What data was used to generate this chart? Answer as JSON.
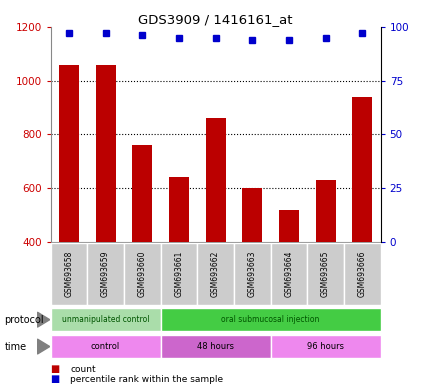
{
  "title": "GDS3909 / 1416161_at",
  "samples": [
    "GSM693658",
    "GSM693659",
    "GSM693660",
    "GSM693661",
    "GSM693662",
    "GSM693663",
    "GSM693664",
    "GSM693665",
    "GSM693666"
  ],
  "counts": [
    1060,
    1060,
    760,
    640,
    860,
    600,
    520,
    630,
    940
  ],
  "percentile_ranks": [
    97,
    97,
    96,
    95,
    95,
    94,
    94,
    95,
    97
  ],
  "ylim_left": [
    400,
    1200
  ],
  "ylim_right": [
    0,
    100
  ],
  "yticks_left": [
    400,
    600,
    800,
    1000,
    1200
  ],
  "yticks_right": [
    0,
    25,
    50,
    75,
    100
  ],
  "bar_color": "#bb0000",
  "dot_color": "#0000cc",
  "protocol_groups": [
    {
      "label": "unmanipulated control",
      "start": 0,
      "end": 3,
      "color": "#aaddaa"
    },
    {
      "label": "oral submucosal injection",
      "start": 3,
      "end": 9,
      "color": "#44cc44"
    }
  ],
  "time_groups": [
    {
      "label": "control",
      "start": 0,
      "end": 3,
      "color": "#ee88ee"
    },
    {
      "label": "48 hours",
      "start": 3,
      "end": 6,
      "color": "#cc66cc"
    },
    {
      "label": "96 hours",
      "start": 6,
      "end": 9,
      "color": "#ee88ee"
    }
  ],
  "legend_items": [
    {
      "color": "#bb0000",
      "label": "count"
    },
    {
      "color": "#0000cc",
      "label": "percentile rank within the sample"
    }
  ],
  "axis_label_color_left": "#cc0000",
  "axis_label_color_right": "#0000cc",
  "tick_area_bg": "#cccccc",
  "grid_linestyle": ":",
  "grid_color": "#555555"
}
